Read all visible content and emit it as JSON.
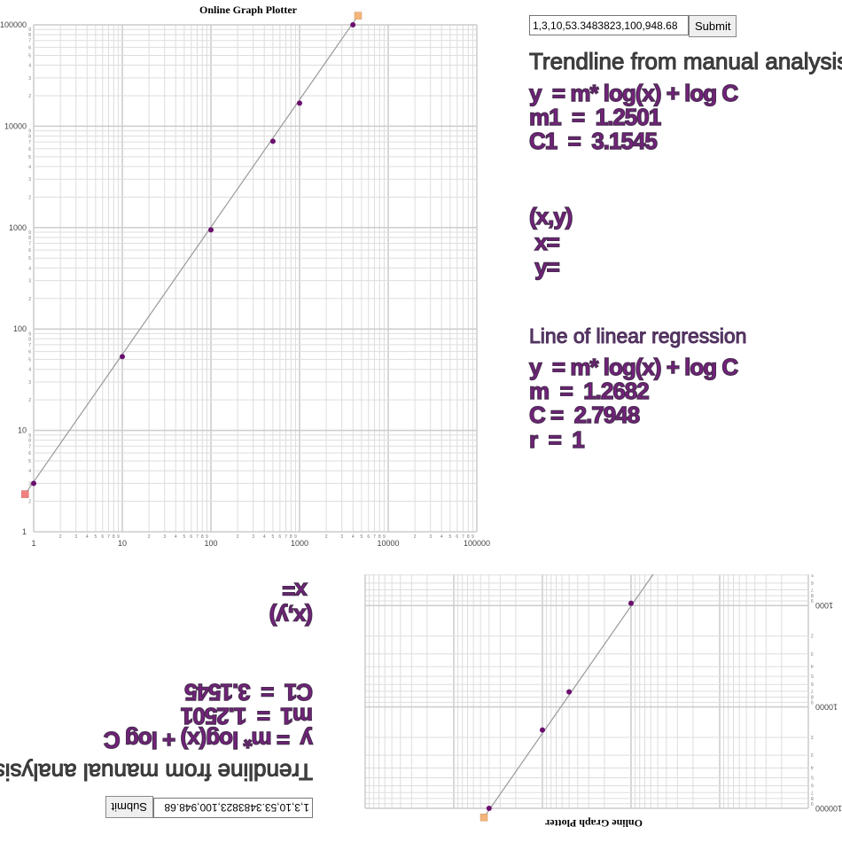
{
  "graph": {
    "title": "Online Graph Plotter"
  },
  "controls": {
    "input_value": "1,3,10,53.3483823,100,948.68",
    "submit_label": "Submit"
  },
  "manual": {
    "heading": "Trendline from manual analysis",
    "equation": "y  = m* log(x) + log C",
    "m1": "m1  =  1.2501",
    "c1": "C1  =  3.1545"
  },
  "cursor": {
    "label": "(x,y)",
    "x": " x=",
    "y": " y="
  },
  "regression": {
    "heading": "Line of linear regression",
    "equation": "y  = m* log(x) + log C",
    "m": "m  =  1.2682",
    "c": "C =  2.7948",
    "r": "r  =  1"
  },
  "colors": {
    "point": "#6a0f6e",
    "trendline": "#999999",
    "start_marker": "#f08080",
    "end_marker": "#f4b67a",
    "grid": "#dddddd"
  },
  "chart_data": {
    "type": "scatter",
    "title": "Online Graph Plotter",
    "x_scale": "log",
    "y_scale": "log",
    "xlim": [
      1,
      100000
    ],
    "ylim": [
      1,
      100000
    ],
    "x_ticks": [
      "1",
      "10",
      "100",
      "1000",
      "10000",
      "100000"
    ],
    "y_ticks": [
      "1",
      "10",
      "100",
      "1000",
      "10000",
      "100000"
    ],
    "minor_tick_labels": [
      "2",
      "3",
      "4",
      "5",
      "6",
      "7",
      "8",
      "9"
    ],
    "grid": true,
    "points": [
      {
        "x": 1,
        "y": 3
      },
      {
        "x": 10,
        "y": 53.3483823
      },
      {
        "x": 100,
        "y": 948.68
      },
      {
        "x": 500,
        "y": 7100
      },
      {
        "x": 1000,
        "y": 16870
      },
      {
        "x": 4000,
        "y": 100000
      }
    ],
    "trendline": {
      "start": {
        "x": 0.8,
        "y": 2.35
      },
      "end": {
        "x": 4570,
        "y": 123000
      }
    }
  }
}
